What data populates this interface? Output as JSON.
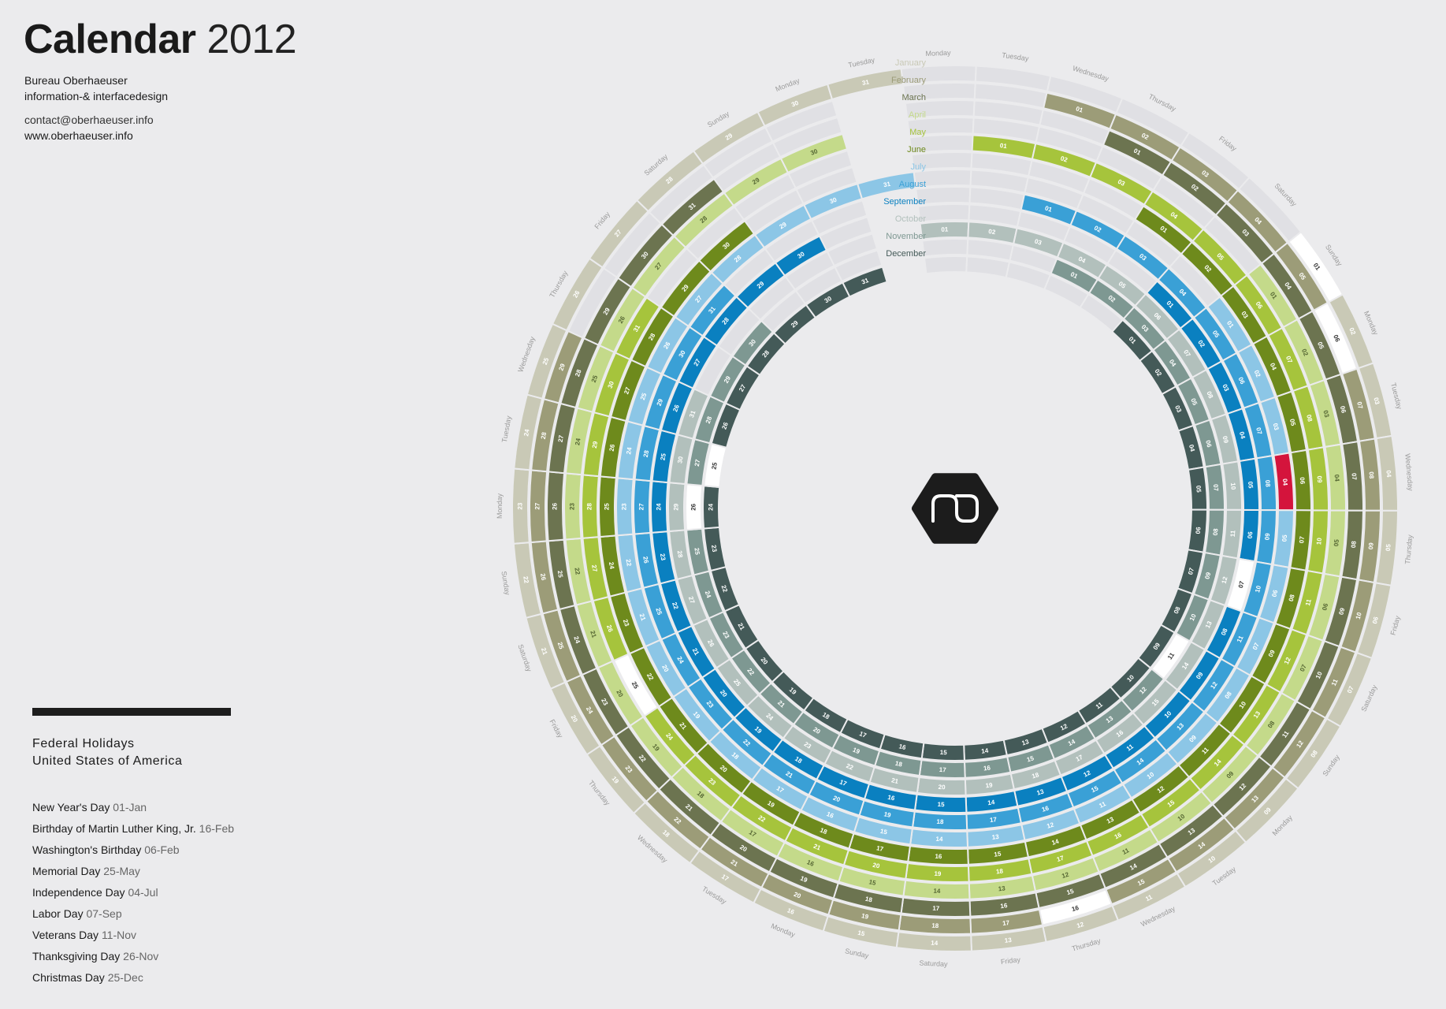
{
  "header": {
    "title_main": "Calendar",
    "title_year": "2012",
    "org_line1": "Bureau Oberhaeuser",
    "org_line2": "information-& interfacedesign",
    "email": "contact@oberhaeuser.info",
    "website": "www.oberhaeuser.info"
  },
  "holidays": {
    "heading_line1": "Federal Holidays",
    "heading_line2": "United States of America",
    "items": [
      {
        "name": "New Year's Day",
        "date": "01-Jan"
      },
      {
        "name": "Birthday of Martin Luther King, Jr.",
        "date": "16-Feb"
      },
      {
        "name": "Washington's Birthday",
        "date": "06-Feb"
      },
      {
        "name": "Memorial Day",
        "date": "25-May"
      },
      {
        "name": "Independence Day",
        "date": "04-Jul"
      },
      {
        "name": "Labor Day",
        "date": "07-Sep"
      },
      {
        "name": "Veterans Day",
        "date": "11-Nov"
      },
      {
        "name": "Thanksgiving Day",
        "date": "26-Nov"
      },
      {
        "name": "Christmas Day",
        "date": "25-Dec"
      }
    ]
  },
  "calendar": {
    "year": 2012,
    "weekday_labels": [
      "Monday",
      "Tuesday",
      "Wednesday",
      "Thursday",
      "Friday",
      "Saturday",
      "Sunday"
    ],
    "months": [
      {
        "name": "January",
        "color": "#c9c9b6",
        "text": "#ffffff",
        "first_weekday": 6,
        "days": 31
      },
      {
        "name": "February",
        "color": "#9c9c78",
        "text": "#ffffff",
        "first_weekday": 2,
        "days": 29
      },
      {
        "name": "March",
        "color": "#6c7450",
        "text": "#ffffff",
        "first_weekday": 3,
        "days": 31
      },
      {
        "name": "April",
        "color": "#c4da8a",
        "text": "#556633",
        "first_weekday": 6,
        "days": 30
      },
      {
        "name": "May",
        "color": "#a6c43c",
        "text": "#ffffff",
        "first_weekday": 1,
        "days": 31
      },
      {
        "name": "June",
        "color": "#6e8a1c",
        "text": "#ffffff",
        "first_weekday": 4,
        "days": 30
      },
      {
        "name": "July",
        "color": "#8cc6e6",
        "text": "#ffffff",
        "first_weekday": 6,
        "days": 31
      },
      {
        "name": "August",
        "color": "#3aa0d6",
        "text": "#ffffff",
        "first_weekday": 2,
        "days": 31
      },
      {
        "name": "September",
        "color": "#0a80c0",
        "text": "#ffffff",
        "first_weekday": 5,
        "days": 30
      },
      {
        "name": "October",
        "color": "#b2c0bc",
        "text": "#ffffff",
        "first_weekday": 0,
        "days": 31
      },
      {
        "name": "November",
        "color": "#7e9892",
        "text": "#ffffff",
        "first_weekday": 3,
        "days": 30
      },
      {
        "name": "December",
        "color": "#445a58",
        "text": "#ffffff",
        "first_weekday": 5,
        "days": 31
      }
    ],
    "empty_color": "#e0e0e4",
    "holiday_color": "#ffffff",
    "holiday_text": "#333333",
    "highlight": {
      "month": 7,
      "day": 4,
      "color": "#d4143c"
    },
    "holiday_days": [
      {
        "month": 1,
        "day": 1
      },
      {
        "month": 2,
        "day": 6
      },
      {
        "month": 2,
        "day": 16
      },
      {
        "month": 5,
        "day": 25
      },
      {
        "month": 9,
        "day": 7
      },
      {
        "month": 11,
        "day": 11
      },
      {
        "month": 11,
        "day": 26
      },
      {
        "month": 12,
        "day": 25
      }
    ],
    "logo_icon": "mo-logo-icon"
  }
}
